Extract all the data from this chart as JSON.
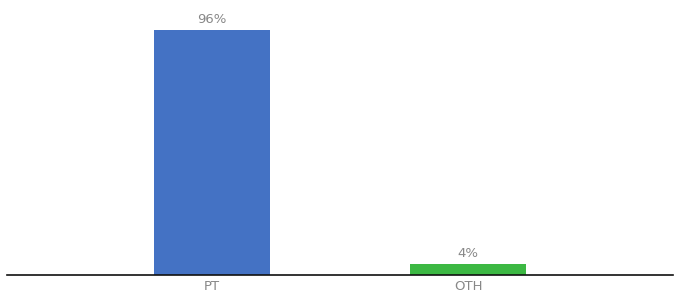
{
  "categories": [
    "PT",
    "OTH"
  ],
  "values": [
    96,
    4
  ],
  "bar_colors": [
    "#4472c4",
    "#3cb843"
  ],
  "value_labels": [
    "96%",
    "4%"
  ],
  "background_color": "#ffffff",
  "text_color": "#888888",
  "label_fontsize": 9.5,
  "tick_fontsize": 9.5,
  "ylim": [
    0,
    105
  ],
  "bar_width": 0.45,
  "xlim": [
    -0.8,
    1.8
  ]
}
